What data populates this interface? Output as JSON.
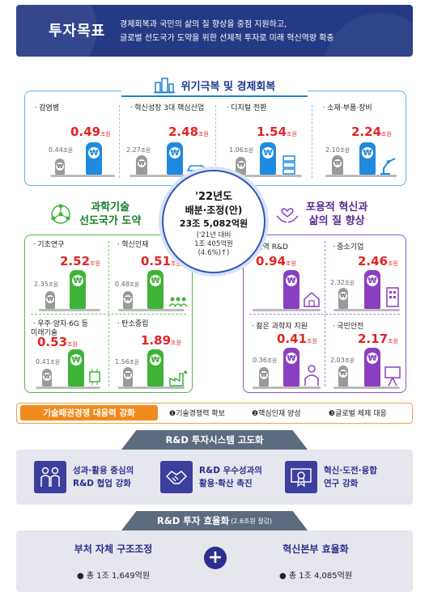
{
  "header": {
    "title": "투자목표",
    "line1": "경제회복과 국민의 삶의 질 향상을 중점 지원하고,",
    "line2": "글로벌 선도국가 도약을 위한 선제적 투자로 미래 혁신역량 확충"
  },
  "unit": "조원",
  "crisis": {
    "title": "위기극복 및 경제회복",
    "items": [
      {
        "name": "ㆍ감염병",
        "prev": "0.44",
        "curr": "0.49"
      },
      {
        "name": "ㆍ혁신성장 3대 핵심산업",
        "prev": "2.27",
        "curr": "2.48"
      },
      {
        "name": "ㆍ디지털 전환",
        "prev": "1.06",
        "curr": "1.54"
      },
      {
        "name": "ㆍ소재·부품·장비",
        "prev": "2.10",
        "curr": "2.24"
      }
    ]
  },
  "center": {
    "year": "'22년도",
    "label": "배분·조정(안)",
    "amount": "23조 5,082억원",
    "compare1": "('21년 대비",
    "compare2": "1조 405억원",
    "compare3": "(4.6%)↑)"
  },
  "science": {
    "title_line1": "과학기술",
    "title_line2": "선도국가 도약",
    "items": [
      {
        "name": "ㆍ기초연구",
        "prev": "2.35",
        "curr": "2.52"
      },
      {
        "name": "ㆍ혁신인재",
        "prev": "0.48",
        "curr": "0.51"
      },
      {
        "name_line1": "ㆍ우주·양자·6G 등",
        "name_line2": "미래기술",
        "prev": "0.41",
        "curr": "0.53"
      },
      {
        "name": "ㆍ탄소중립",
        "prev": "1.56",
        "curr": "1.89"
      }
    ]
  },
  "inclusive": {
    "title_line1": "포용적 혁신과",
    "title_line2": "삶의 질 향상",
    "items": [
      {
        "name": "ㆍ지역 R&D",
        "prev": "",
        "curr": "0.94"
      },
      {
        "name": "ㆍ중소기업",
        "prev": "2.32",
        "curr": "2.46"
      },
      {
        "name": "ㆍ젊은 과학자 지원",
        "prev": "0.36",
        "curr": "0.41"
      },
      {
        "name": "ㆍ국민안전",
        "prev": "2.03",
        "curr": "2.17"
      }
    ]
  },
  "strip": {
    "label": "기술패권경쟁 대응력 강화",
    "item1": "❶기술경쟁력 확보",
    "item2": "❷핵심인재 양성",
    "item3": "❸글로벌 체제 대응"
  },
  "system": {
    "title": "R&D 투자시스템 고도화",
    "items": [
      {
        "line1": "성과·활용 중심의",
        "line2": "R&D 협업 강화",
        "icon": "people-icon"
      },
      {
        "line1": "R&D 우수성과의",
        "line2": "활용·확산 촉진",
        "icon": "handshake-icon"
      },
      {
        "line1": "혁신·도전·융합",
        "line2": "연구 강화",
        "icon": "certificate-icon"
      }
    ]
  },
  "efficiency": {
    "title": "R&D 투자 효율화",
    "title_note": "(2.6조원 절감)",
    "left_title": "부처 자체 구조조정",
    "left_value": "● 총 1조 1,649억원",
    "right_title": "혁신본부 효율화",
    "right_value": "● 총 1조 4,085억원"
  },
  "colors": {
    "navy": "#253a84",
    "red_value": "#e32424",
    "blue": "#1f8be0",
    "green": "#3fb338",
    "purple": "#8a3fc2",
    "orange": "#f08a1c"
  }
}
